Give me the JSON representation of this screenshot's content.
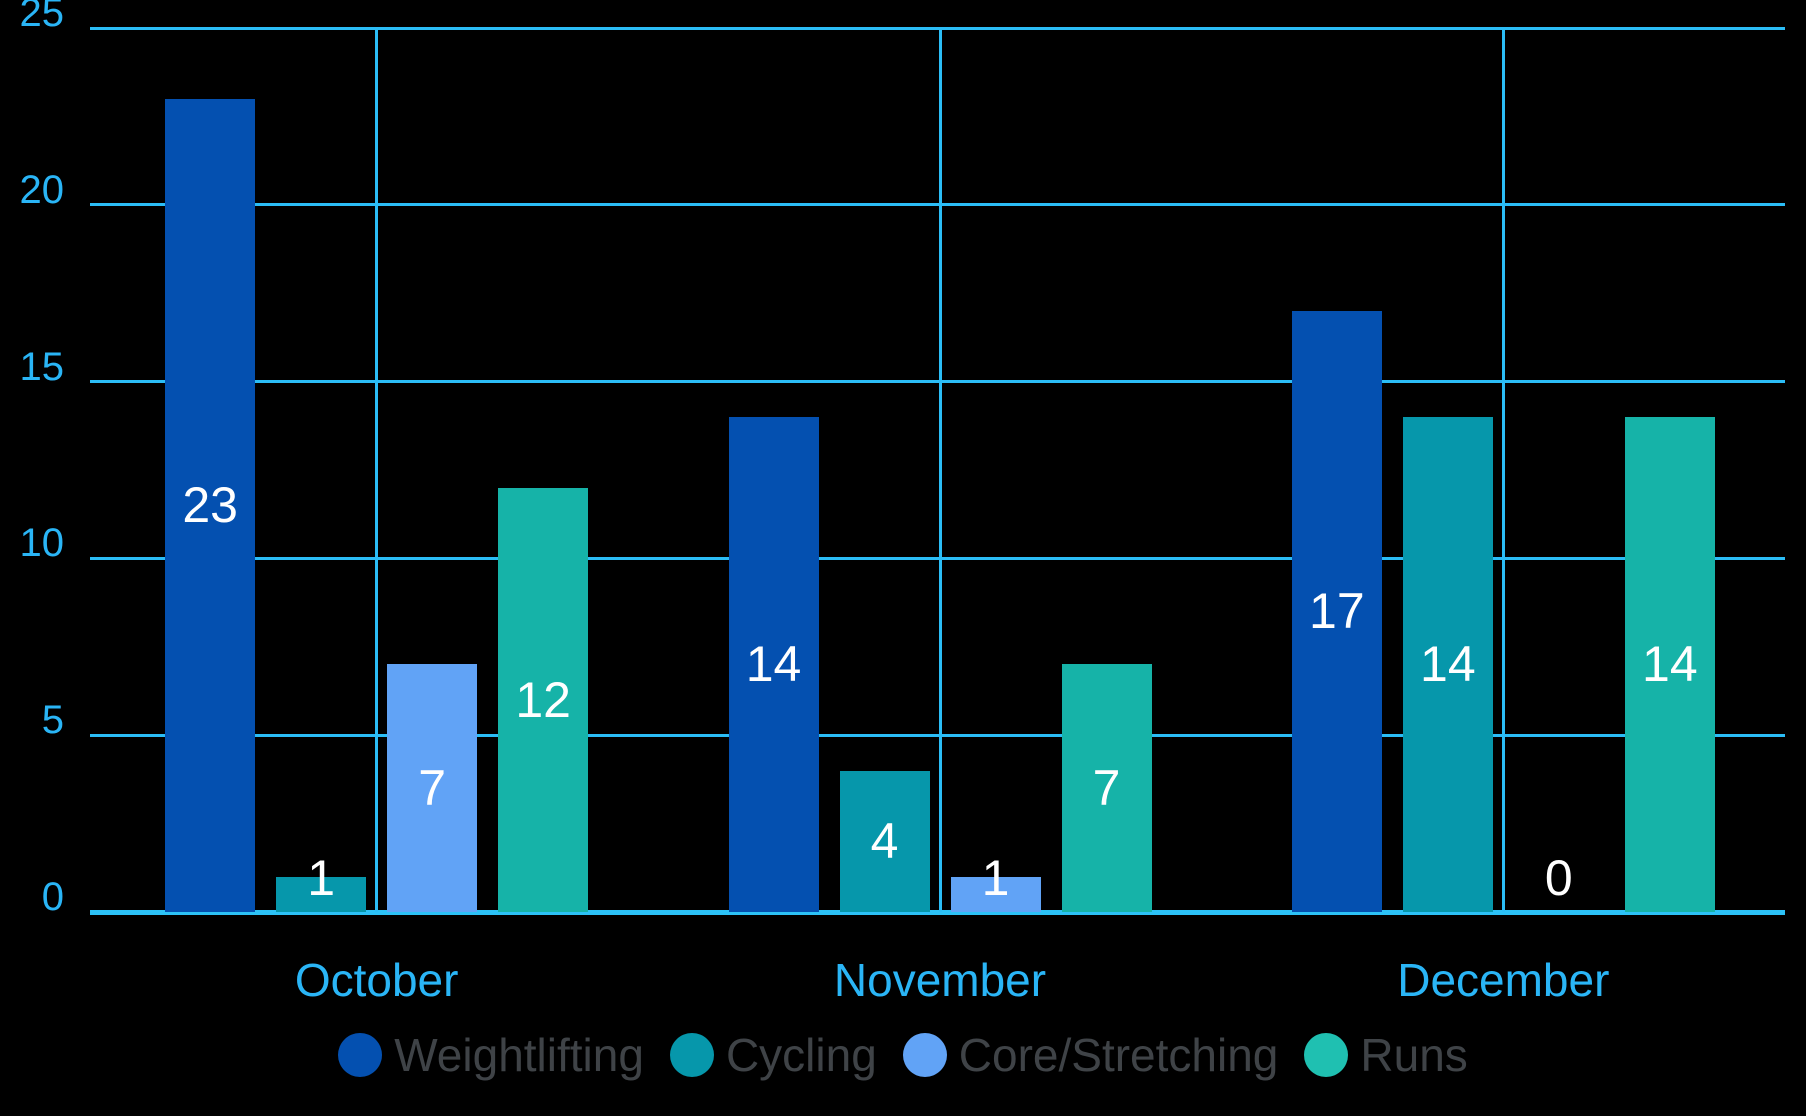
{
  "chart_data": {
    "type": "bar",
    "title": "",
    "categories": [
      "October",
      "November",
      "December"
    ],
    "series": [
      {
        "name": "Weightlifting",
        "color": "#0450b0",
        "values": [
          23,
          14,
          17
        ]
      },
      {
        "name": "Cycling",
        "color": "#0697ab",
        "values": [
          1,
          4,
          14
        ]
      },
      {
        "name": "Core/Stretching",
        "color": "#61a3f6",
        "values": [
          7,
          1,
          0
        ]
      },
      {
        "name": "Runs",
        "color": "#16b3a8",
        "swatch_color": "#1fc0b1",
        "values": [
          12,
          7,
          14
        ]
      }
    ],
    "ylim": [
      0,
      25
    ],
    "yticks": [
      0,
      5,
      10,
      15,
      20,
      25
    ],
    "grid": true,
    "vertical_gridlines_at_category_centers": true,
    "bar_value_labels": [
      [
        "23",
        "1",
        "7",
        "12"
      ],
      [
        "14",
        "4",
        "1",
        "7"
      ],
      [
        "17",
        "14",
        "0",
        "14"
      ]
    ],
    "legend_position": "bottom",
    "legend_labels": [
      "Weightlifting",
      "Cycling",
      "Core/Stretching",
      "Runs"
    ]
  },
  "colors": {
    "background": "#000000",
    "gridline": "#2bbdf6",
    "baseline": "#2cc2f7",
    "axis_tick_label": "#2ab5f6",
    "category_label": "#2ab5f6",
    "bar_value_label": "#ffffff",
    "legend_text": "#3f4347"
  }
}
